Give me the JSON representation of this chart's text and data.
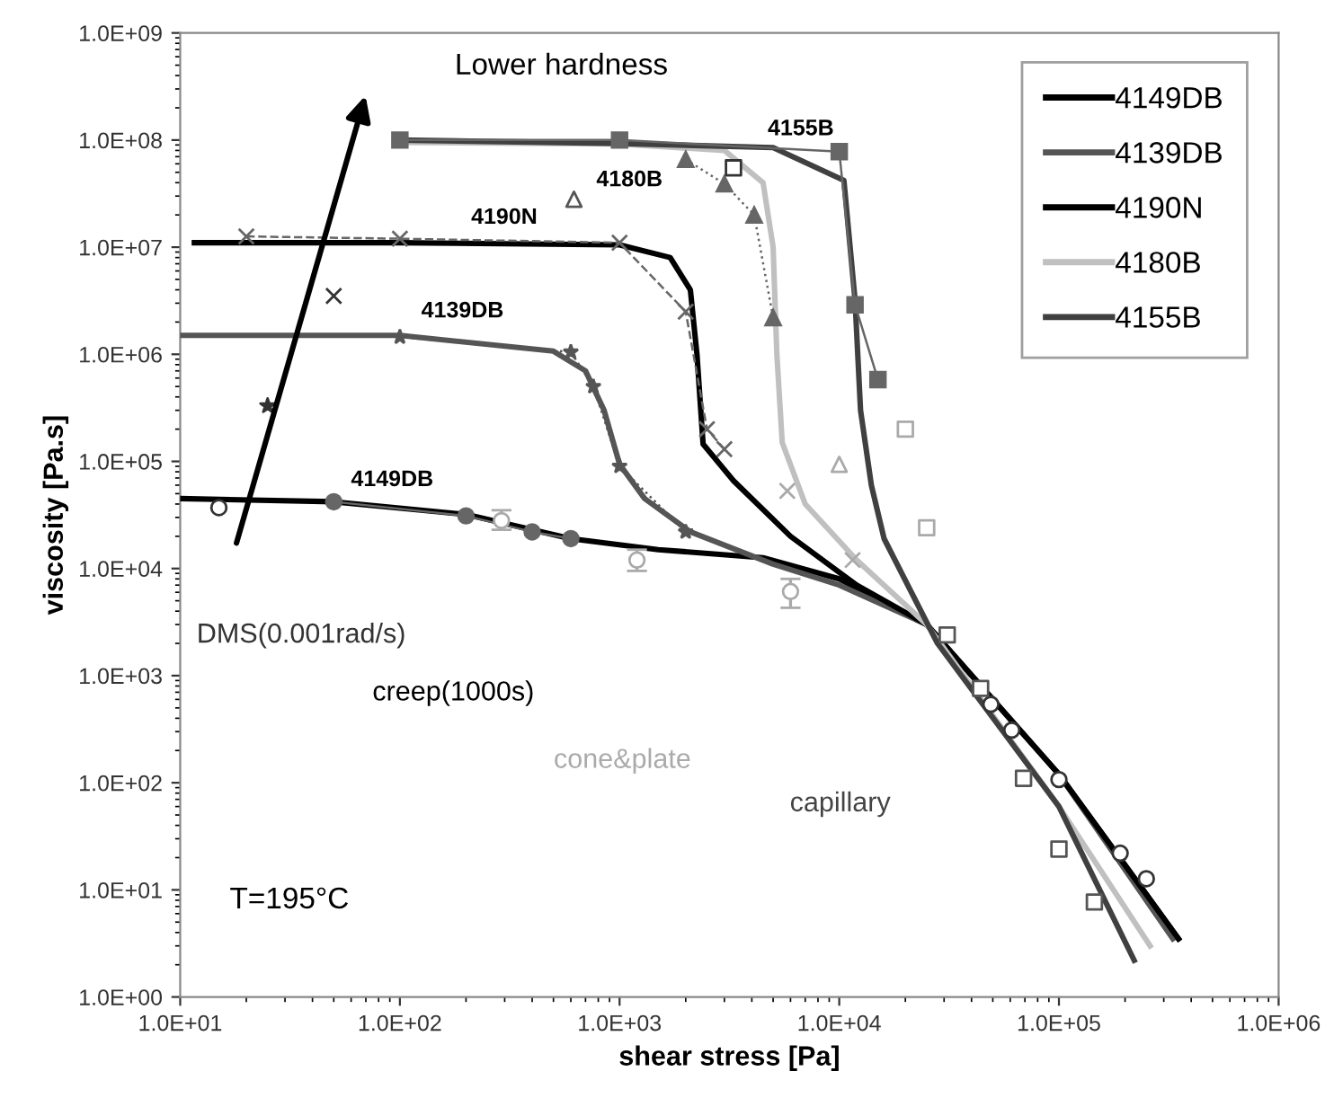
{
  "chart_data": {
    "type": "line",
    "xlabel": "shear stress [Pa]",
    "ylabel": "viscosity [Pa.s]",
    "log": "xy",
    "grid": false,
    "legend": "top right",
    "xlim": [
      10,
      1000000
    ],
    "ylim": [
      1,
      1000000000
    ],
    "xticks": [
      {
        "value": 10,
        "label": "1.0E+01"
      },
      {
        "value": 100,
        "label": "1.0E+02"
      },
      {
        "value": 1000,
        "label": "1.0E+03"
      },
      {
        "value": 10000,
        "label": "1.0E+04"
      },
      {
        "value": 100000,
        "label": "1.0E+05"
      },
      {
        "value": 1000000,
        "label": "1.0E+06"
      }
    ],
    "yticks": [
      {
        "value": 1,
        "label": "1.0E+00"
      },
      {
        "value": 10,
        "label": "1.0E+01"
      },
      {
        "value": 100,
        "label": "1.0E+02"
      },
      {
        "value": 1000,
        "label": "1.0E+03"
      },
      {
        "value": 10000,
        "label": "1.0E+04"
      },
      {
        "value": 100000,
        "label": "1.0E+05"
      },
      {
        "value": 1000000,
        "label": "1.0E+06"
      },
      {
        "value": 10000000,
        "label": "1.0E+07"
      },
      {
        "value": 100000000,
        "label": "1.0E+08"
      },
      {
        "value": 1000000000,
        "label": "1.0E+09"
      }
    ],
    "series": [
      {
        "name": "4149DB",
        "color": "#000000",
        "x": [
          10,
          50,
          200,
          600,
          1500,
          4500,
          10000,
          25000,
          100000,
          350000
        ],
        "values": [
          45000,
          42000,
          32000,
          19000,
          15000,
          12600,
          8000,
          3000,
          120,
          3.5
        ]
      },
      {
        "name": "4139DB",
        "color": "#555555",
        "x": [
          10,
          100,
          500,
          700,
          850,
          1000,
          1300,
          2100,
          5000,
          10000,
          25000,
          100000,
          330000
        ],
        "values": [
          1500000,
          1500000,
          1070000,
          700000,
          300000,
          94000,
          45000,
          22000,
          11000,
          7000,
          3000,
          120,
          3.5
        ]
      },
      {
        "name": "4190N",
        "color": "#000000",
        "x": [
          11.6,
          100,
          1000,
          1700,
          2100,
          2250,
          2400,
          3300,
          6000,
          12000,
          25000,
          100000,
          350000
        ],
        "values": [
          11000000,
          11000000,
          10500000,
          8000000,
          4000000,
          1000000,
          145000,
          66000,
          20000,
          7000,
          3000,
          120,
          3.5
        ]
      },
      {
        "name": "4180B",
        "color": "#c0c0c0",
        "x": [
          100,
          1000,
          3000,
          4500,
          5000,
          5200,
          5500,
          7000,
          12000,
          25000,
          100000,
          260000
        ],
        "values": [
          95000000,
          92000000,
          80000000,
          40000000,
          10000000,
          1000000,
          150000,
          40000,
          12000,
          3000,
          60,
          3
        ]
      },
      {
        "name": "4155B",
        "color": "#404040",
        "x": [
          100,
          1000,
          5000,
          10500,
          11800,
          12500,
          14000,
          16000,
          28000,
          100000,
          220000
        ],
        "values": [
          100000000,
          93000000,
          85000000,
          42000000,
          3200000,
          300000,
          60000,
          19000,
          2000,
          60,
          2.2
        ]
      },
      {
        "type": "line",
        "color": "#666666",
        "marker": "square",
        "line_style": "solid",
        "x": [
          100,
          1000,
          10000,
          11800,
          15000
        ],
        "values": [
          100000000,
          100000000,
          78000000,
          2900000,
          580000
        ]
      },
      {
        "type": "line",
        "color": "#666666",
        "marker": "triangle",
        "line_style": "dotted",
        "x": [
          2000,
          3000,
          4100,
          5000
        ],
        "values": [
          66000000,
          39000000,
          20000000,
          2200000
        ]
      },
      {
        "type": "line",
        "color": "#666666",
        "marker": "cross",
        "line_style": "dashed",
        "x": [
          20,
          100,
          1000,
          2000,
          2500,
          3000
        ],
        "values": [
          12600000,
          12000000,
          11000000,
          2500000,
          200000,
          130000
        ]
      },
      {
        "type": "line",
        "color": "#555555",
        "marker": "star",
        "line_style": "dotted",
        "x": [
          100,
          600,
          760,
          1000,
          2000
        ],
        "values": [
          1450000,
          1050000,
          500000,
          90000,
          22000
        ]
      },
      {
        "type": "line",
        "color": "#666666",
        "marker": "circle",
        "line_style": "solid",
        "x": [
          50,
          200,
          400,
          600
        ],
        "values": [
          42000,
          31000,
          22000,
          19000
        ]
      },
      {
        "type": "scatter",
        "color": "#aaaaaa",
        "marker": "circle",
        "x": [
          290,
          1200,
          6000
        ],
        "values": [
          28000,
          12000,
          6100
        ],
        "errors": [
          [
            23000,
            35000
          ],
          [
            9500,
            15000
          ],
          [
            4300,
            8000
          ]
        ]
      },
      {
        "type": "scatter",
        "color": "#aaaaaa",
        "marker": "cross",
        "x": [
          5800,
          11500
        ],
        "values": [
          53000,
          12000
        ]
      },
      {
        "type": "scatter",
        "color": "#aaaaaa",
        "marker": "square",
        "x": [
          20000,
          25000
        ],
        "values": [
          200000,
          24000
        ]
      },
      {
        "type": "scatter",
        "color": "#aaaaaa",
        "marker": "triangle",
        "x": [
          10000
        ],
        "values": [
          94000
        ]
      },
      {
        "type": "scatter",
        "color": "#555555",
        "marker": "triangle",
        "x": [
          620
        ],
        "values": [
          28000000
        ]
      },
      {
        "type": "scatter",
        "color": "#333333",
        "marker": "square",
        "x": [
          3300
        ],
        "values": [
          55000000
        ]
      },
      {
        "type": "scatter",
        "color": "#333333",
        "marker": "cross",
        "x": [
          50
        ],
        "values": [
          3500000
        ]
      },
      {
        "type": "scatter",
        "color": "#333333",
        "marker": "star",
        "x": [
          25
        ],
        "values": [
          330000
        ]
      },
      {
        "type": "scatter",
        "color": "#333333",
        "marker": "circle",
        "x": [
          15
        ],
        "values": [
          37000
        ]
      },
      {
        "type": "scatter",
        "color": "#333333",
        "marker": "circle",
        "x": [
          49000,
          61000,
          100000,
          190000,
          250000
        ],
        "values": [
          540,
          310,
          107,
          22,
          12.7
        ]
      },
      {
        "type": "scatter",
        "color": "#555555",
        "marker": "square",
        "x": [
          31000,
          44000,
          69000,
          100000,
          145000
        ],
        "values": [
          2400,
          760,
          110,
          24,
          7.7
        ]
      }
    ],
    "annotations": [
      "4155B",
      "4180B",
      "4190N",
      "4139DB",
      "4149DB",
      "Lower hardness",
      "DMS(0.001rad/s)",
      "creep(1000s)",
      "cone&plate",
      "capillary",
      "T=195°C"
    ]
  }
}
